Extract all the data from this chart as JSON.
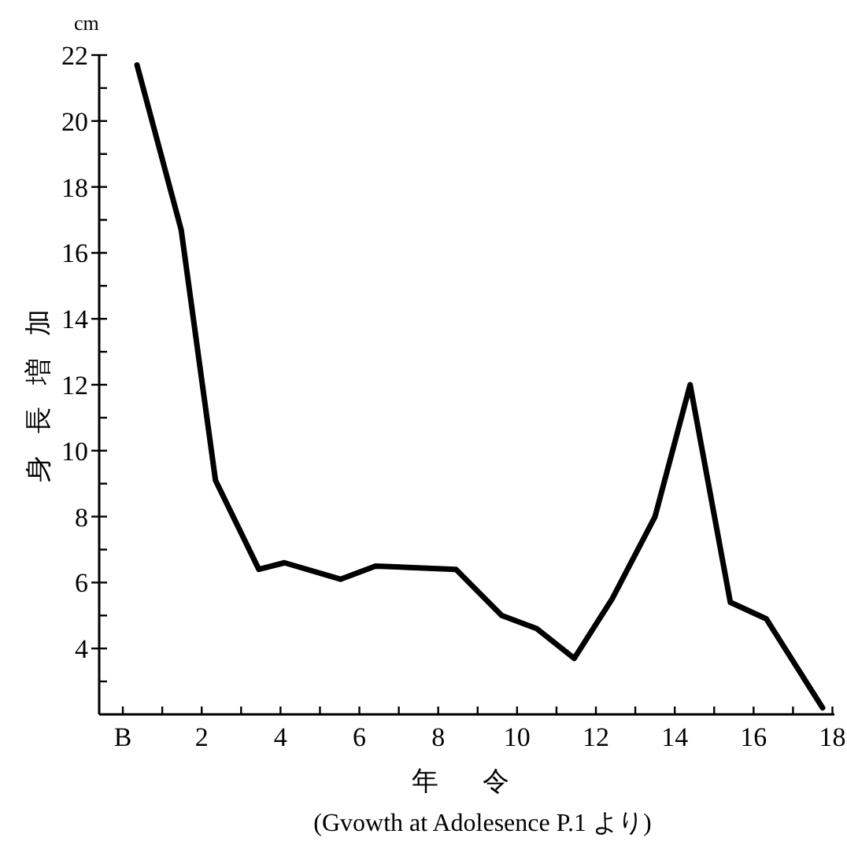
{
  "chart_data": {
    "type": "line",
    "xlabel": "年令",
    "ylabel": "身長増加",
    "annotations": [
      "cm",
      "(Gvowth at Adolesence P.1 より)"
    ],
    "x": [
      0.36,
      1.48,
      2.35,
      3.45,
      4.1,
      5.52,
      6.41,
      8.45,
      9.61,
      10.5,
      11.45,
      12.41,
      13.5,
      14.39,
      15.41,
      16.32,
      17.75
    ],
    "series": [
      {
        "color": "#000000",
        "values": [
          21.7,
          16.7,
          9.1,
          6.4,
          6.6,
          6.1,
          6.5,
          6.4,
          5.0,
          4.6,
          3.7,
          5.5,
          8.0,
          12.0,
          5.4,
          4.9,
          2.2
        ]
      }
    ],
    "xlim": [
      -0.6,
      18.05
    ],
    "ylim": [
      2,
      22
    ],
    "xticks": [
      {
        "value": 0,
        "label": "B"
      },
      {
        "value": 1,
        "label": null
      },
      2,
      {
        "value": 3,
        "label": null
      },
      4,
      {
        "value": 5,
        "label": null
      },
      6,
      {
        "value": 7,
        "label": null
      },
      8,
      {
        "value": 9,
        "label": null
      },
      10,
      {
        "value": 11,
        "label": null
      },
      12,
      {
        "value": 13,
        "label": null
      },
      14,
      {
        "value": 15,
        "label": null
      },
      16,
      {
        "value": 17,
        "label": null
      },
      18
    ],
    "yticks": [
      {
        "value": 3,
        "label": null
      },
      4,
      {
        "value": 5,
        "label": null
      },
      6,
      {
        "value": 7,
        "label": null
      },
      8,
      {
        "value": 9,
        "label": null
      },
      10,
      {
        "value": 11,
        "label": null
      },
      12,
      {
        "value": 13,
        "label": null
      },
      14,
      {
        "value": 15,
        "label": null
      },
      16,
      {
        "value": 17,
        "label": null
      },
      18,
      {
        "value": 19,
        "label": null
      },
      20,
      {
        "value": 21,
        "label": null
      },
      22
    ],
    "grid": false,
    "marker": "none",
    "line_style": "solid"
  }
}
